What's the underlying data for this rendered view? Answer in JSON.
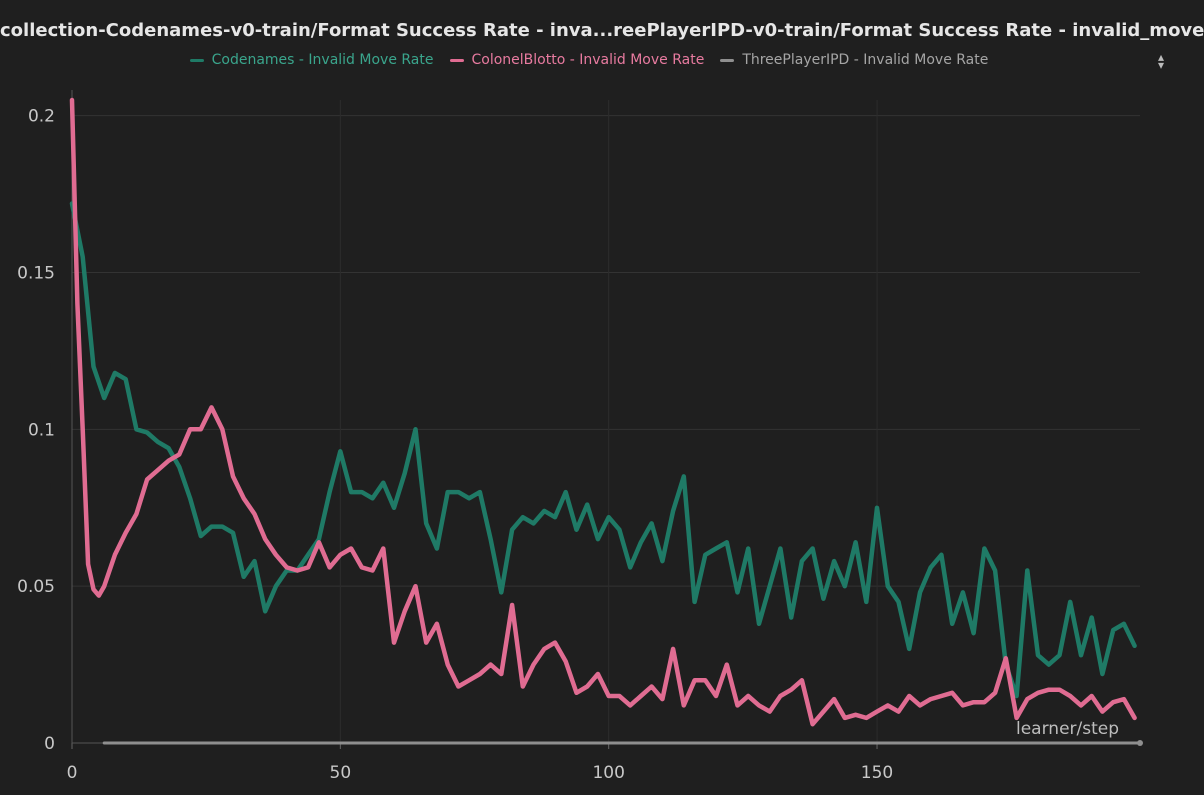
{
  "chart_data": {
    "type": "line",
    "title": "collection-Codenames-v0-train/Format Success Rate - inva...reePlayerIPD-v0-train/Format Success Rate - invalid_move",
    "xlabel": "learner/step",
    "ylabel": "",
    "xlim": [
      0,
      199
    ],
    "ylim": [
      0,
      0.205
    ],
    "x_ticks": [
      0,
      50,
      100,
      150
    ],
    "x_tick_labels": [
      "0",
      "50",
      "100",
      "150"
    ],
    "y_ticks": [
      0,
      0.05,
      0.1,
      0.15,
      0.2
    ],
    "y_tick_labels": [
      "0",
      "0.05",
      "0.1",
      "0.15",
      "0.2"
    ],
    "grid": true,
    "legend_position": "top",
    "series": [
      {
        "name": "Codenames - Invalid Move Rate",
        "color": "#1f7a66",
        "x": [
          0,
          2,
          4,
          6,
          8,
          10,
          12,
          14,
          16,
          18,
          20,
          22,
          24,
          26,
          28,
          30,
          32,
          34,
          36,
          38,
          40,
          42,
          44,
          46,
          48,
          50,
          52,
          54,
          56,
          58,
          60,
          62,
          64,
          66,
          68,
          70,
          72,
          74,
          76,
          78,
          80,
          82,
          84,
          86,
          88,
          90,
          92,
          94,
          96,
          98,
          100,
          102,
          104,
          106,
          108,
          110,
          112,
          114,
          116,
          118,
          120,
          122,
          124,
          126,
          128,
          130,
          132,
          134,
          136,
          138,
          140,
          142,
          144,
          146,
          148,
          150,
          152,
          154,
          156,
          158,
          160,
          162,
          164,
          166,
          168,
          170,
          172,
          174,
          176,
          178,
          180,
          182,
          184,
          186,
          188,
          190,
          192,
          194,
          196,
          198
        ],
        "y": [
          0.172,
          0.155,
          0.12,
          0.11,
          0.118,
          0.116,
          0.1,
          0.099,
          0.096,
          0.094,
          0.088,
          0.078,
          0.066,
          0.069,
          0.069,
          0.067,
          0.053,
          0.058,
          0.042,
          0.05,
          0.055,
          0.055,
          0.06,
          0.065,
          0.08,
          0.093,
          0.08,
          0.08,
          0.078,
          0.083,
          0.075,
          0.086,
          0.1,
          0.07,
          0.062,
          0.08,
          0.08,
          0.078,
          0.08,
          0.065,
          0.048,
          0.068,
          0.072,
          0.07,
          0.074,
          0.072,
          0.08,
          0.068,
          0.076,
          0.065,
          0.072,
          0.068,
          0.056,
          0.064,
          0.07,
          0.058,
          0.074,
          0.085,
          0.045,
          0.06,
          0.062,
          0.064,
          0.048,
          0.062,
          0.038,
          0.05,
          0.062,
          0.04,
          0.058,
          0.062,
          0.046,
          0.058,
          0.05,
          0.064,
          0.045,
          0.075,
          0.05,
          0.045,
          0.03,
          0.048,
          0.056,
          0.06,
          0.038,
          0.048,
          0.035,
          0.062,
          0.055,
          0.025,
          0.015,
          0.055,
          0.028,
          0.025,
          0.028,
          0.045,
          0.028,
          0.04,
          0.022,
          0.036,
          0.038,
          0.031
        ]
      },
      {
        "name": "ColonelBlotto - Invalid Move Rate",
        "color": "#e06c92",
        "x": [
          0,
          1,
          2,
          3,
          4,
          5,
          6,
          8,
          10,
          12,
          14,
          16,
          18,
          20,
          22,
          24,
          26,
          28,
          30,
          32,
          34,
          36,
          38,
          40,
          42,
          44,
          46,
          48,
          50,
          52,
          54,
          56,
          58,
          60,
          62,
          64,
          66,
          68,
          70,
          72,
          74,
          76,
          78,
          80,
          82,
          84,
          86,
          88,
          90,
          92,
          94,
          96,
          98,
          100,
          102,
          104,
          106,
          108,
          110,
          112,
          114,
          116,
          118,
          120,
          122,
          124,
          126,
          128,
          130,
          132,
          134,
          136,
          138,
          140,
          142,
          144,
          146,
          148,
          150,
          152,
          154,
          156,
          158,
          160,
          162,
          164,
          166,
          168,
          170,
          172,
          174,
          176,
          178,
          180,
          182,
          184,
          186,
          188,
          190,
          192,
          194,
          196,
          198
        ],
        "y": [
          0.205,
          0.14,
          0.1,
          0.057,
          0.049,
          0.047,
          0.05,
          0.06,
          0.067,
          0.073,
          0.084,
          0.087,
          0.09,
          0.092,
          0.1,
          0.1,
          0.107,
          0.1,
          0.085,
          0.078,
          0.073,
          0.065,
          0.06,
          0.056,
          0.055,
          0.056,
          0.064,
          0.056,
          0.06,
          0.062,
          0.056,
          0.055,
          0.062,
          0.032,
          0.042,
          0.05,
          0.032,
          0.038,
          0.025,
          0.018,
          0.02,
          0.022,
          0.025,
          0.022,
          0.044,
          0.018,
          0.025,
          0.03,
          0.032,
          0.026,
          0.016,
          0.018,
          0.022,
          0.015,
          0.015,
          0.012,
          0.015,
          0.018,
          0.014,
          0.03,
          0.012,
          0.02,
          0.02,
          0.015,
          0.025,
          0.012,
          0.015,
          0.012,
          0.01,
          0.015,
          0.017,
          0.02,
          0.006,
          0.01,
          0.014,
          0.008,
          0.009,
          0.008,
          0.01,
          0.012,
          0.01,
          0.015,
          0.012,
          0.014,
          0.015,
          0.016,
          0.012,
          0.013,
          0.013,
          0.016,
          0.027,
          0.008,
          0.014,
          0.016,
          0.017,
          0.017,
          0.015,
          0.012,
          0.015,
          0.01,
          0.013,
          0.014,
          0.008
        ]
      },
      {
        "name": "ThreePlayerIPD - Invalid Move Rate",
        "color": "#8f8f8f",
        "x": [
          6,
          199
        ],
        "y": [
          0,
          0
        ]
      }
    ]
  },
  "legend_scroll_icon": "up-down-arrows-icon"
}
